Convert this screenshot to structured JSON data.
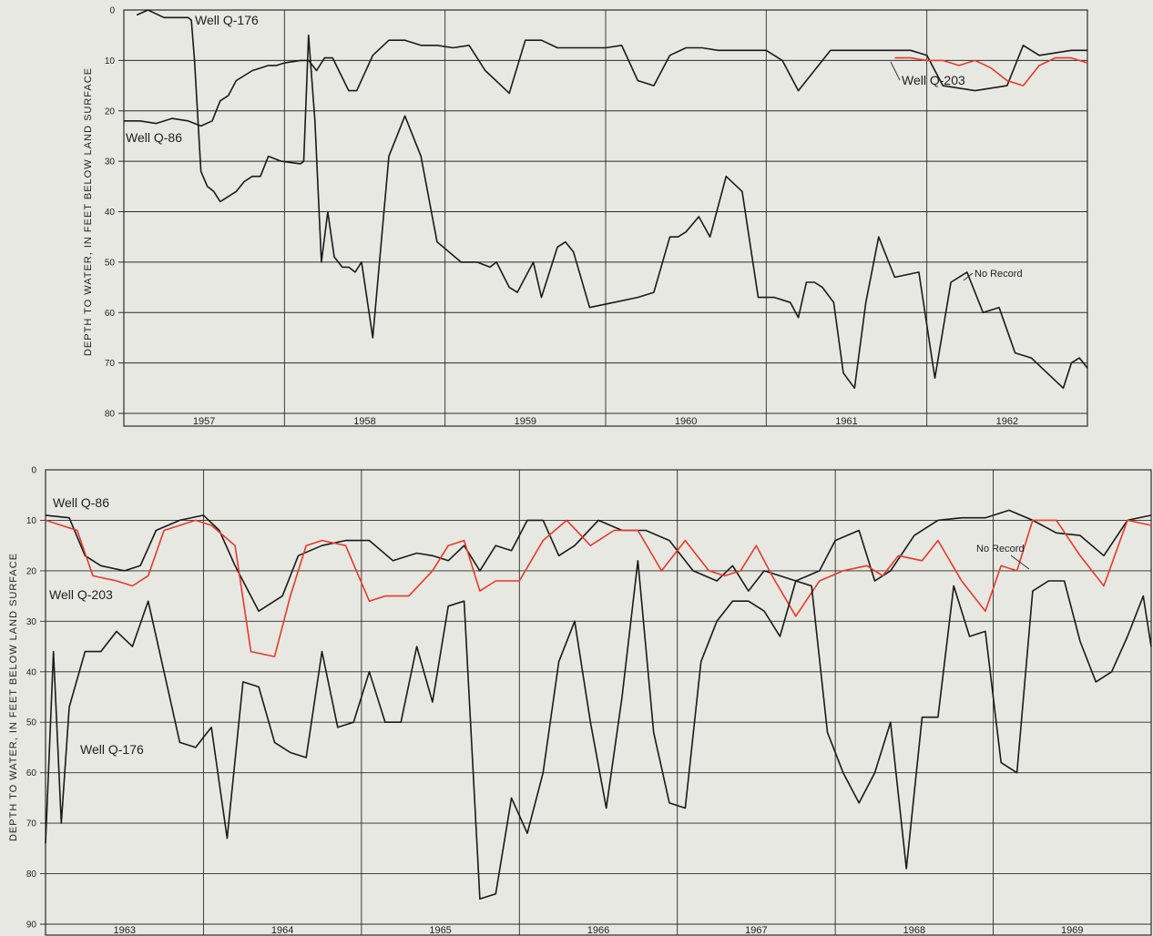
{
  "chart_data": [
    {
      "type": "line",
      "ylabel": "DEPTH TO WATER, IN FEET BELOW LAND SURFACE",
      "ylim": [
        0,
        80
      ],
      "y_inverted": true,
      "yticks": [
        "0",
        "10",
        "20",
        "30",
        "40",
        "50",
        "60",
        "70",
        "80"
      ],
      "xlim": [
        1957.0,
        1963.0
      ],
      "categories": [
        "1957",
        "1958",
        "1959",
        "1960",
        "1961",
        "1962"
      ],
      "grid": true,
      "annotations": [
        "Well Q-176",
        "Well Q-86",
        "Well Q-203",
        "No Record"
      ],
      "series": [
        {
          "name": "Well Q-176",
          "color": "#1a1a1a",
          "x": [
            1957.08,
            1957.15,
            1957.25,
            1957.4,
            1957.42,
            1957.44,
            1957.48,
            1957.52,
            1957.56,
            1957.6,
            1957.65,
            1957.7,
            1957.75,
            1957.8,
            1957.85,
            1957.9,
            1957.98,
            1958.1,
            1958.12,
            1958.15,
            1958.19,
            1958.23,
            1958.27,
            1958.31,
            1958.36,
            1958.4,
            1958.44,
            1958.48,
            1958.55,
            1958.65,
            1958.75,
            1958.85,
            1958.95,
            1959.1,
            1959.2,
            1959.28,
            1959.32,
            1959.4,
            1959.45,
            1959.55,
            1959.6,
            1959.7,
            1959.75,
            1959.8,
            1959.9,
            1960.05,
            1960.2,
            1960.3,
            1960.4,
            1960.45,
            1960.5,
            1960.58,
            1960.65,
            1960.75,
            1960.85,
            1960.95,
            1961.05,
            1961.15,
            1961.2,
            1961.25,
            1961.3,
            1961.35,
            1961.42,
            1961.48,
            1961.55,
            1961.62,
            1961.7,
            1961.8,
            1961.95,
            1962.05,
            1962.15,
            1962.25,
            1962.35,
            1962.45,
            1962.55,
            1962.65,
            1962.75,
            1962.85,
            1962.9,
            1962.95,
            1963.0
          ],
          "values": [
            1,
            0,
            1.5,
            1.5,
            2,
            10,
            32,
            35,
            36,
            38,
            37,
            36,
            34,
            33,
            33,
            29,
            30,
            30.5,
            30,
            5,
            22,
            50,
            40,
            49,
            51,
            51,
            52,
            50,
            65,
            29,
            21,
            29,
            46,
            50,
            50,
            51,
            50,
            55,
            56,
            50,
            57,
            47,
            46,
            48,
            59,
            58,
            57,
            56,
            45,
            45,
            44,
            41,
            45,
            33,
            36,
            57,
            57,
            58,
            61,
            54,
            54,
            55,
            58,
            72,
            75,
            58,
            45,
            53,
            52,
            73,
            54,
            52,
            60,
            59,
            68,
            69,
            72,
            75,
            70,
            69,
            71
          ]
        },
        {
          "name": "Well Q-86",
          "color": "#1a1a1a",
          "x": [
            1957.0,
            1957.1,
            1957.2,
            1957.3,
            1957.4,
            1957.48,
            1957.55,
            1957.6,
            1957.65,
            1957.7,
            1957.75,
            1957.8,
            1957.85,
            1957.9,
            1957.95,
            1958.0,
            1958.1,
            1958.15,
            1958.2,
            1958.25,
            1958.3,
            1958.4,
            1958.45,
            1958.55,
            1958.65,
            1958.75,
            1958.85,
            1958.95,
            1959.05,
            1959.15,
            1959.25,
            1959.35,
            1959.4,
            1959.5,
            1959.6,
            1959.7,
            1959.8,
            1959.85,
            1959.9,
            1960.0,
            1960.1,
            1960.2,
            1960.3,
            1960.4,
            1960.5,
            1960.6,
            1960.7,
            1960.8,
            1960.9,
            1961.0,
            1961.1,
            1961.2,
            1961.3,
            1961.4,
            1961.5,
            1961.6,
            1961.7,
            1961.8,
            1961.9,
            1962.0,
            1962.1,
            1962.2,
            1962.3,
            1962.4,
            1962.5,
            1962.6,
            1962.7,
            1962.8,
            1962.9,
            1963.0
          ],
          "values": [
            22,
            22,
            22.5,
            21.5,
            22,
            23,
            22,
            18,
            17,
            14,
            13,
            12,
            11.5,
            11,
            11,
            10.5,
            10,
            10,
            12,
            9.5,
            9.5,
            16,
            16,
            9,
            6,
            6,
            7,
            7,
            7.5,
            7,
            12,
            15,
            16.5,
            6,
            6,
            7.5,
            7.5,
            7.5,
            7.5,
            7.5,
            7,
            14,
            15,
            9,
            7.5,
            7.5,
            8,
            8,
            8,
            8,
            10,
            16,
            12,
            8,
            8,
            8,
            8,
            8,
            8,
            9,
            15,
            15.5,
            16,
            15.5,
            15,
            7,
            9,
            8.5,
            8,
            8
          ]
        },
        {
          "name": "Well Q-203",
          "color": "#e63a2a",
          "x": [
            1961.8,
            1961.9,
            1962.0,
            1962.1,
            1962.2,
            1962.3,
            1962.4,
            1962.5,
            1962.6,
            1962.7,
            1962.8,
            1962.9,
            1963.0
          ],
          "values": [
            9.5,
            9.5,
            10,
            10,
            11,
            10,
            11.5,
            14,
            15,
            11,
            9.5,
            9.5,
            10.5
          ]
        }
      ]
    },
    {
      "type": "line",
      "ylabel": "DEPTH TO WATER, IN FEET BELOW LAND SURFACE",
      "ylim": [
        0,
        90
      ],
      "y_inverted": true,
      "yticks": [
        "0",
        "10",
        "20",
        "30",
        "40",
        "50",
        "60",
        "70",
        "80",
        "90"
      ],
      "xlim": [
        1963.0,
        1970.0
      ],
      "categories": [
        "1963",
        "1964",
        "1965",
        "1966",
        "1967",
        "1968",
        "1969"
      ],
      "grid": true,
      "annotations": [
        "Well Q-86",
        "Well Q-203",
        "Well Q-176",
        "No Record"
      ],
      "series": [
        {
          "name": "Well Q-86",
          "color": "#1a1a1a",
          "x": [
            1963.0,
            1963.15,
            1963.25,
            1963.35,
            1963.5,
            1963.6,
            1963.7,
            1963.85,
            1964.0,
            1964.1,
            1964.2,
            1964.35,
            1964.5,
            1964.6,
            1964.75,
            1964.9,
            1965.05,
            1965.2,
            1965.35,
            1965.45,
            1965.55,
            1965.65,
            1965.75,
            1965.85,
            1965.95,
            1966.05,
            1966.15,
            1966.25,
            1966.35,
            1966.5,
            1966.65,
            1966.8,
            1966.95,
            1967.1,
            1967.25,
            1967.35,
            1967.45,
            1967.55,
            1967.65,
            1967.75,
            1967.9,
            1968.0,
            1968.15,
            1968.25,
            1968.35,
            1968.5,
            1968.65,
            1968.8,
            1968.95,
            1969.1,
            1969.25,
            1969.4,
            1969.55,
            1969.7,
            1969.85,
            1970.0
          ],
          "values": [
            9,
            9.5,
            17,
            19,
            20,
            19,
            12,
            10,
            9,
            12,
            19,
            28,
            25,
            17,
            15,
            14,
            14,
            18,
            16.5,
            17,
            18,
            15,
            20,
            15,
            16,
            10,
            10,
            17,
            15,
            10,
            12,
            12,
            14,
            20,
            22,
            19,
            24,
            20,
            21,
            22,
            20,
            14,
            12,
            22,
            20,
            13,
            10,
            9.5,
            9.5,
            8,
            10,
            12.5,
            13,
            17,
            10,
            9
          ]
        },
        {
          "name": "Well Q-203",
          "color": "#e63a2a",
          "x": [
            1963.0,
            1963.1,
            1963.2,
            1963.3,
            1963.45,
            1963.55,
            1963.65,
            1963.75,
            1963.85,
            1963.95,
            1964.05,
            1964.2,
            1964.3,
            1964.45,
            1964.55,
            1964.65,
            1964.75,
            1964.9,
            1965.05,
            1965.15,
            1965.3,
            1965.45,
            1965.55,
            1965.65,
            1965.75,
            1965.85,
            1966.0,
            1966.15,
            1966.3,
            1966.45,
            1966.6,
            1966.75,
            1966.9,
            1967.05,
            1967.2,
            1967.3,
            1967.4,
            1967.5,
            1967.6,
            1967.75,
            1967.9,
            1968.05,
            1968.2,
            1968.3,
            1968.4,
            1968.55,
            1968.65,
            1968.8,
            1968.95,
            1969.05,
            1969.15,
            1969.25,
            1969.4,
            1969.55,
            1969.7,
            1969.85,
            1970.0
          ],
          "values": [
            10,
            11,
            12,
            21,
            22,
            23,
            21,
            12,
            11,
            10,
            11,
            15,
            36,
            37,
            25,
            15,
            14,
            15,
            26,
            25,
            25,
            20,
            15,
            14,
            24,
            22,
            22,
            14,
            10,
            15,
            12,
            12,
            20,
            14,
            20,
            21,
            20,
            15,
            21,
            29,
            22,
            20,
            19,
            21,
            17,
            18,
            14,
            22,
            28,
            19,
            20,
            10,
            10,
            17,
            23,
            10,
            11
          ]
        },
        {
          "name": "Well Q-176",
          "color": "#1a1a1a",
          "x": [
            1963.0,
            1963.05,
            1963.1,
            1963.15,
            1963.25,
            1963.35,
            1963.45,
            1963.55,
            1963.65,
            1963.75,
            1963.85,
            1963.95,
            1964.05,
            1964.15,
            1964.25,
            1964.35,
            1964.45,
            1964.55,
            1964.65,
            1964.75,
            1964.85,
            1964.95,
            1965.05,
            1965.15,
            1965.25,
            1965.35,
            1965.45,
            1965.55,
            1965.65,
            1965.75,
            1965.85,
            1965.95,
            1966.05,
            1966.15,
            1966.25,
            1966.35,
            1966.45,
            1966.55,
            1966.65,
            1966.75,
            1966.85,
            1966.95,
            1967.05,
            1967.15,
            1967.25,
            1967.35,
            1967.45,
            1967.55,
            1967.65,
            1967.75,
            1967.85,
            1967.95,
            1968.05,
            1968.15,
            1968.25,
            1968.35,
            1968.45,
            1968.55,
            1968.65,
            1968.75,
            1968.85,
            1968.95,
            1969.05,
            1969.15,
            1969.25,
            1969.35,
            1969.45,
            1969.55,
            1969.65,
            1969.75,
            1969.85,
            1969.95,
            1970.0
          ],
          "values": [
            74,
            36,
            70,
            47,
            36,
            36,
            32,
            35,
            26,
            40,
            54,
            55,
            51,
            73,
            42,
            43,
            54,
            56,
            57,
            36,
            51,
            50,
            40,
            50,
            50,
            35,
            46,
            27,
            26,
            85,
            84,
            65,
            72,
            60,
            38,
            30,
            50,
            67,
            45,
            18,
            52,
            66,
            67,
            38,
            30,
            26,
            26,
            28,
            33,
            22,
            23,
            52,
            60,
            66,
            60,
            50,
            79,
            49,
            49,
            23,
            33,
            32,
            58,
            60,
            24,
            22,
            22,
            34,
            42,
            40,
            33,
            25,
            35
          ]
        }
      ]
    }
  ]
}
